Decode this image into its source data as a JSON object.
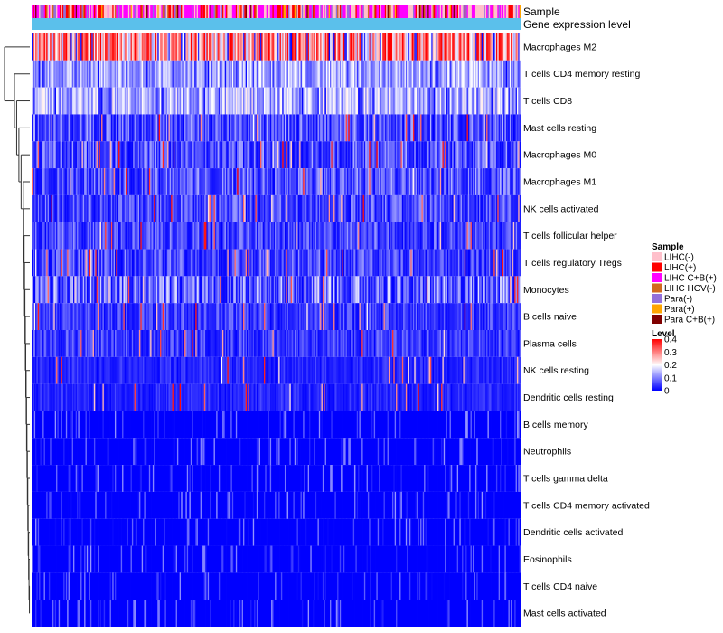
{
  "chart_data": {
    "type": "heatmap",
    "title": "",
    "annotation_rows": [
      "Sample",
      "Gene expression level"
    ],
    "rows": [
      {
        "label": "Macrophages M2",
        "mean": 0.26
      },
      {
        "label": "T cells CD4 memory resting",
        "mean": 0.12
      },
      {
        "label": "T cells CD8",
        "mean": 0.13
      },
      {
        "label": "Mast cells resting",
        "mean": 0.07
      },
      {
        "label": "Macrophages M0",
        "mean": 0.07
      },
      {
        "label": "Macrophages M1",
        "mean": 0.07
      },
      {
        "label": "NK cells activated",
        "mean": 0.06
      },
      {
        "label": "T cells follicular helper",
        "mean": 0.06
      },
      {
        "label": "T cells regulatory  Tregs",
        "mean": 0.06
      },
      {
        "label": "Monocytes",
        "mean": 0.09
      },
      {
        "label": "B cells naive",
        "mean": 0.05
      },
      {
        "label": "Plasma cells",
        "mean": 0.05
      },
      {
        "label": "NK cells resting",
        "mean": 0.03
      },
      {
        "label": "Dendritic cells resting",
        "mean": 0.03
      },
      {
        "label": "B cells memory",
        "mean": 0.02
      },
      {
        "label": "Neutrophils",
        "mean": 0.02
      },
      {
        "label": "T cells gamma delta",
        "mean": 0.01
      },
      {
        "label": "T cells CD4 memory activated",
        "mean": 0.01
      },
      {
        "label": "Dendritic cells activated",
        "mean": 0.01
      },
      {
        "label": "Eosinophils",
        "mean": 0.01
      },
      {
        "label": "T cells CD4 naive",
        "mean": 0.01
      },
      {
        "label": "Mast cells activated",
        "mean": 0.01
      }
    ],
    "sample_legend": {
      "title": "Sample",
      "entries": [
        {
          "label": "LIHC(-)",
          "color": "#ffc0cb"
        },
        {
          "label": "LIHC(+)",
          "color": "#ff0000"
        },
        {
          "label": "LIHC C+B(+)",
          "color": "#ff00ff"
        },
        {
          "label": "LIHC HCV(-)",
          "color": "#d2691e"
        },
        {
          "label": "Para(-)",
          "color": "#9370db"
        },
        {
          "label": "Para(+)",
          "color": "#ffa500"
        },
        {
          "label": "Para C+B(+)",
          "color": "#800000"
        }
      ]
    },
    "level_legend": {
      "title": "Level",
      "ticks": [
        "0.4",
        "0.3",
        "0.2",
        "0.1",
        "0"
      ],
      "range": [
        0,
        0.4
      ],
      "colors": {
        "low": "#0000ff",
        "mid": "#ffffff",
        "high": "#ff0000"
      }
    },
    "expression_color": "#5bc0eb",
    "n_columns": 400,
    "legend_position": "right"
  }
}
